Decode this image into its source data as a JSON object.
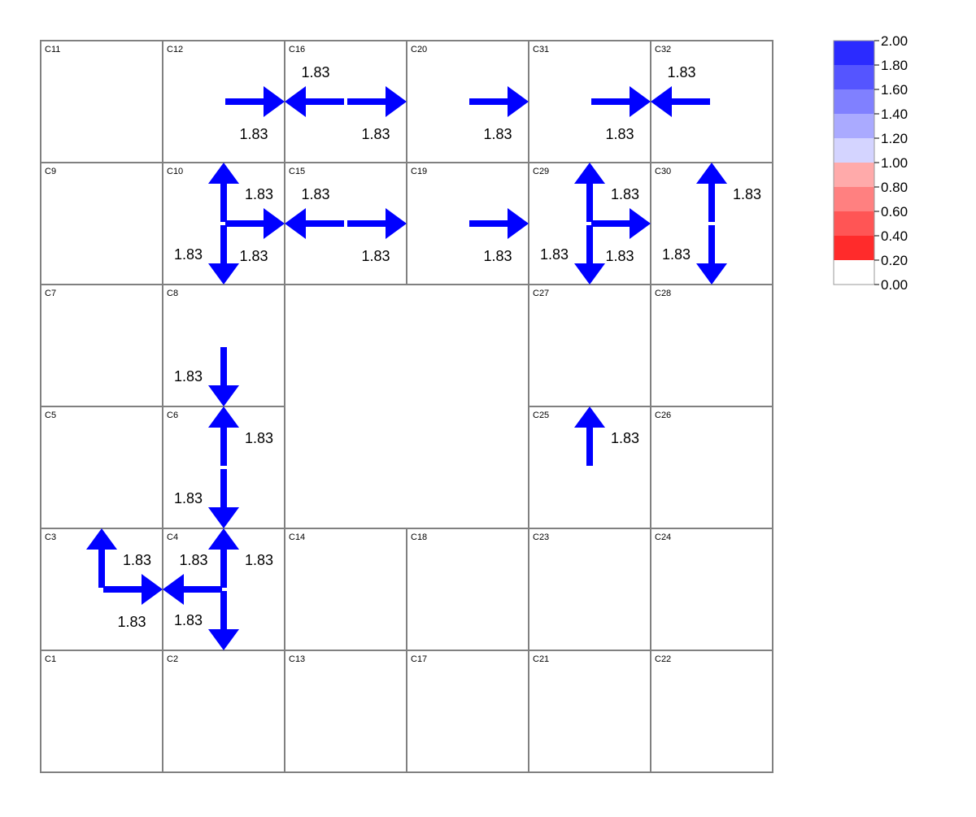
{
  "grid": {
    "cells": [
      {
        "label": "C11",
        "row": 0,
        "col": 0
      },
      {
        "label": "C12",
        "row": 0,
        "col": 1
      },
      {
        "label": "C16",
        "row": 0,
        "col": 2
      },
      {
        "label": "C20",
        "row": 0,
        "col": 3
      },
      {
        "label": "C31",
        "row": 0,
        "col": 4
      },
      {
        "label": "C32",
        "row": 0,
        "col": 5
      },
      {
        "label": "C9",
        "row": 1,
        "col": 0
      },
      {
        "label": "C10",
        "row": 1,
        "col": 1
      },
      {
        "label": "C15",
        "row": 1,
        "col": 2
      },
      {
        "label": "C19",
        "row": 1,
        "col": 3
      },
      {
        "label": "C29",
        "row": 1,
        "col": 4
      },
      {
        "label": "C30",
        "row": 1,
        "col": 5
      },
      {
        "label": "C7",
        "row": 2,
        "col": 0
      },
      {
        "label": "C8",
        "row": 2,
        "col": 1
      },
      {
        "label": "C27",
        "row": 2,
        "col": 4
      },
      {
        "label": "C28",
        "row": 2,
        "col": 5
      },
      {
        "label": "C5",
        "row": 3,
        "col": 0
      },
      {
        "label": "C6",
        "row": 3,
        "col": 1
      },
      {
        "label": "C25",
        "row": 3,
        "col": 4
      },
      {
        "label": "C26",
        "row": 3,
        "col": 5
      },
      {
        "label": "C3",
        "row": 4,
        "col": 0
      },
      {
        "label": "C4",
        "row": 4,
        "col": 1
      },
      {
        "label": "C14",
        "row": 4,
        "col": 2
      },
      {
        "label": "C18",
        "row": 4,
        "col": 3
      },
      {
        "label": "C23",
        "row": 4,
        "col": 4
      },
      {
        "label": "C24",
        "row": 4,
        "col": 5
      },
      {
        "label": "C1",
        "row": 5,
        "col": 0
      },
      {
        "label": "C2",
        "row": 5,
        "col": 1
      },
      {
        "label": "C13",
        "row": 5,
        "col": 2
      },
      {
        "label": "C17",
        "row": 5,
        "col": 3
      },
      {
        "label": "C21",
        "row": 5,
        "col": 4
      },
      {
        "label": "C22",
        "row": 5,
        "col": 5
      }
    ]
  },
  "flows": [
    {
      "from": "C12",
      "to": "C16",
      "value": "1.83"
    },
    {
      "from": "C16",
      "to": "C12",
      "value": "1.83"
    },
    {
      "from": "C16",
      "to": "C20",
      "value": "1.83"
    },
    {
      "from": "C20",
      "to": "C31",
      "value": "1.83"
    },
    {
      "from": "C31",
      "to": "C32",
      "value": "1.83"
    },
    {
      "from": "C32",
      "to": "C31",
      "value": "1.83"
    },
    {
      "from": "C10",
      "to": "C12",
      "value": "1.83"
    },
    {
      "from": "C10",
      "to": "C15",
      "value": "1.83"
    },
    {
      "from": "C15",
      "to": "C10",
      "value": "1.83"
    },
    {
      "from": "C10",
      "to": "C8",
      "value": "1.83"
    },
    {
      "from": "C15",
      "to": "C19",
      "value": "1.83"
    },
    {
      "from": "C19",
      "to": "C29",
      "value": "1.83"
    },
    {
      "from": "C29",
      "to": "C31",
      "value": "1.83"
    },
    {
      "from": "C29",
      "to": "C30",
      "value": "1.83"
    },
    {
      "from": "C29",
      "to": "C27",
      "value": "1.83"
    },
    {
      "from": "C30",
      "to": "C32",
      "value": "1.83"
    },
    {
      "from": "C30",
      "to": "C28",
      "value": "1.83"
    },
    {
      "from": "C8",
      "to": "C6",
      "value": "1.83"
    },
    {
      "from": "C6",
      "to": "C8",
      "value": "1.83"
    },
    {
      "from": "C6",
      "to": "C4",
      "value": "1.83"
    },
    {
      "from": "C4",
      "to": "C6",
      "value": "1.83"
    },
    {
      "from": "C4",
      "to": "C3",
      "value": "1.83"
    },
    {
      "from": "C4",
      "to": "C2",
      "value": "1.83"
    },
    {
      "from": "C3",
      "to": "C5",
      "value": "1.83"
    },
    {
      "from": "C3",
      "to": "C4",
      "value": "1.83"
    },
    {
      "from": "C25",
      "to": "C27",
      "value": "1.83"
    }
  ],
  "legend": {
    "ticks": [
      "2.00",
      "1.80",
      "1.60",
      "1.40",
      "1.20",
      "1.00",
      "0.80",
      "0.60",
      "0.40",
      "0.20",
      "0.00"
    ],
    "colors": [
      "#2b2bff",
      "#5555ff",
      "#8080ff",
      "#aaaaff",
      "#d4d4ff",
      "#ffaaaa",
      "#ff8080",
      "#ff5555",
      "#ff2b2b",
      "#ffffff"
    ]
  },
  "arrow_color": "#0000ff"
}
